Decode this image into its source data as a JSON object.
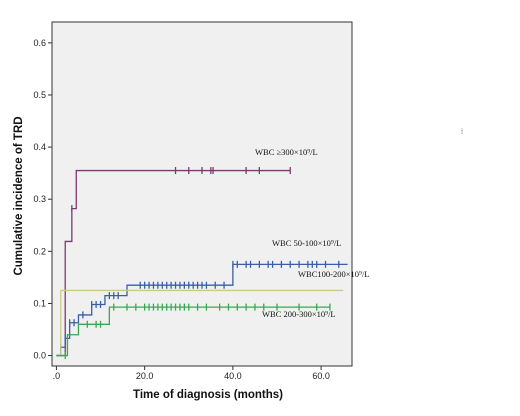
{
  "chart_data": {
    "type": "line",
    "step": true,
    "title": "",
    "xlabel": "Time of diagnosis (months)",
    "ylabel": "Cumulative incidence of TRD",
    "xlim": [
      -1,
      67
    ],
    "ylim": [
      -0.02,
      0.64
    ],
    "xticks": [
      0,
      20,
      40,
      60
    ],
    "xtick_labels": [
      ".0",
      "20.0",
      "40.0",
      "60.0"
    ],
    "yticks": [
      0.0,
      0.1,
      0.2,
      0.3,
      0.4,
      0.5,
      0.6
    ],
    "ytick_labels": [
      "0.0",
      "0.1",
      "0.2",
      "0.3",
      "0.4",
      "0.5",
      "0.6"
    ],
    "background": "#f0f0f0",
    "grid": false,
    "legend": "none; series labeled inline",
    "series": [
      {
        "name": "WBC ≥300×10⁹/L",
        "color": "#7b3b6e",
        "steps": [
          [
            0,
            0.0
          ],
          [
            2,
            0.219
          ],
          [
            3.5,
            0.282
          ],
          [
            4.5,
            0.355
          ],
          [
            53,
            0.355
          ]
        ],
        "censor_x": [
          3.5,
          27,
          30,
          33,
          35,
          35.5,
          43,
          46,
          53
        ]
      },
      {
        "name": "WBC 50-100×10⁹/L",
        "color": "#3a5ea8",
        "steps": [
          [
            0,
            0.0
          ],
          [
            1,
            0.016
          ],
          [
            2,
            0.033
          ],
          [
            3,
            0.063
          ],
          [
            5,
            0.078
          ],
          [
            8,
            0.098
          ],
          [
            11,
            0.115
          ],
          [
            16,
            0.135
          ],
          [
            40,
            0.175
          ],
          [
            66,
            0.175
          ]
        ],
        "censor_x": [
          1,
          2,
          3,
          4,
          6,
          8,
          9,
          10,
          12,
          13,
          14,
          19,
          20,
          21,
          22,
          23,
          24,
          25,
          26,
          27,
          28,
          29,
          30,
          31,
          32,
          33,
          34,
          36,
          38,
          40,
          41,
          43,
          44,
          46,
          48,
          49,
          51,
          53,
          55,
          57,
          58,
          59,
          61,
          64
        ]
      },
      {
        "name": "WBC100-200×10⁹/L",
        "color": "#c9c98c",
        "steps": [
          [
            0,
            0.0
          ],
          [
            1,
            0.125
          ],
          [
            65,
            0.125
          ]
        ],
        "censor_x": []
      },
      {
        "name": "WBC 200-300×10⁹/L",
        "color": "#3aa852",
        "steps": [
          [
            0,
            0.0
          ],
          [
            2,
            0.0
          ],
          [
            2.5,
            0.04
          ],
          [
            5,
            0.06
          ],
          [
            12,
            0.093
          ],
          [
            62,
            0.093
          ]
        ],
        "censor_x": [
          2,
          7,
          9,
          10,
          13,
          16,
          18,
          20,
          21,
          22,
          23,
          24,
          25,
          26,
          27,
          28,
          29,
          30,
          32,
          34,
          37,
          39,
          41,
          43,
          45,
          47,
          50,
          55,
          59,
          62
        ]
      }
    ]
  },
  "stray_mark": "⁞"
}
